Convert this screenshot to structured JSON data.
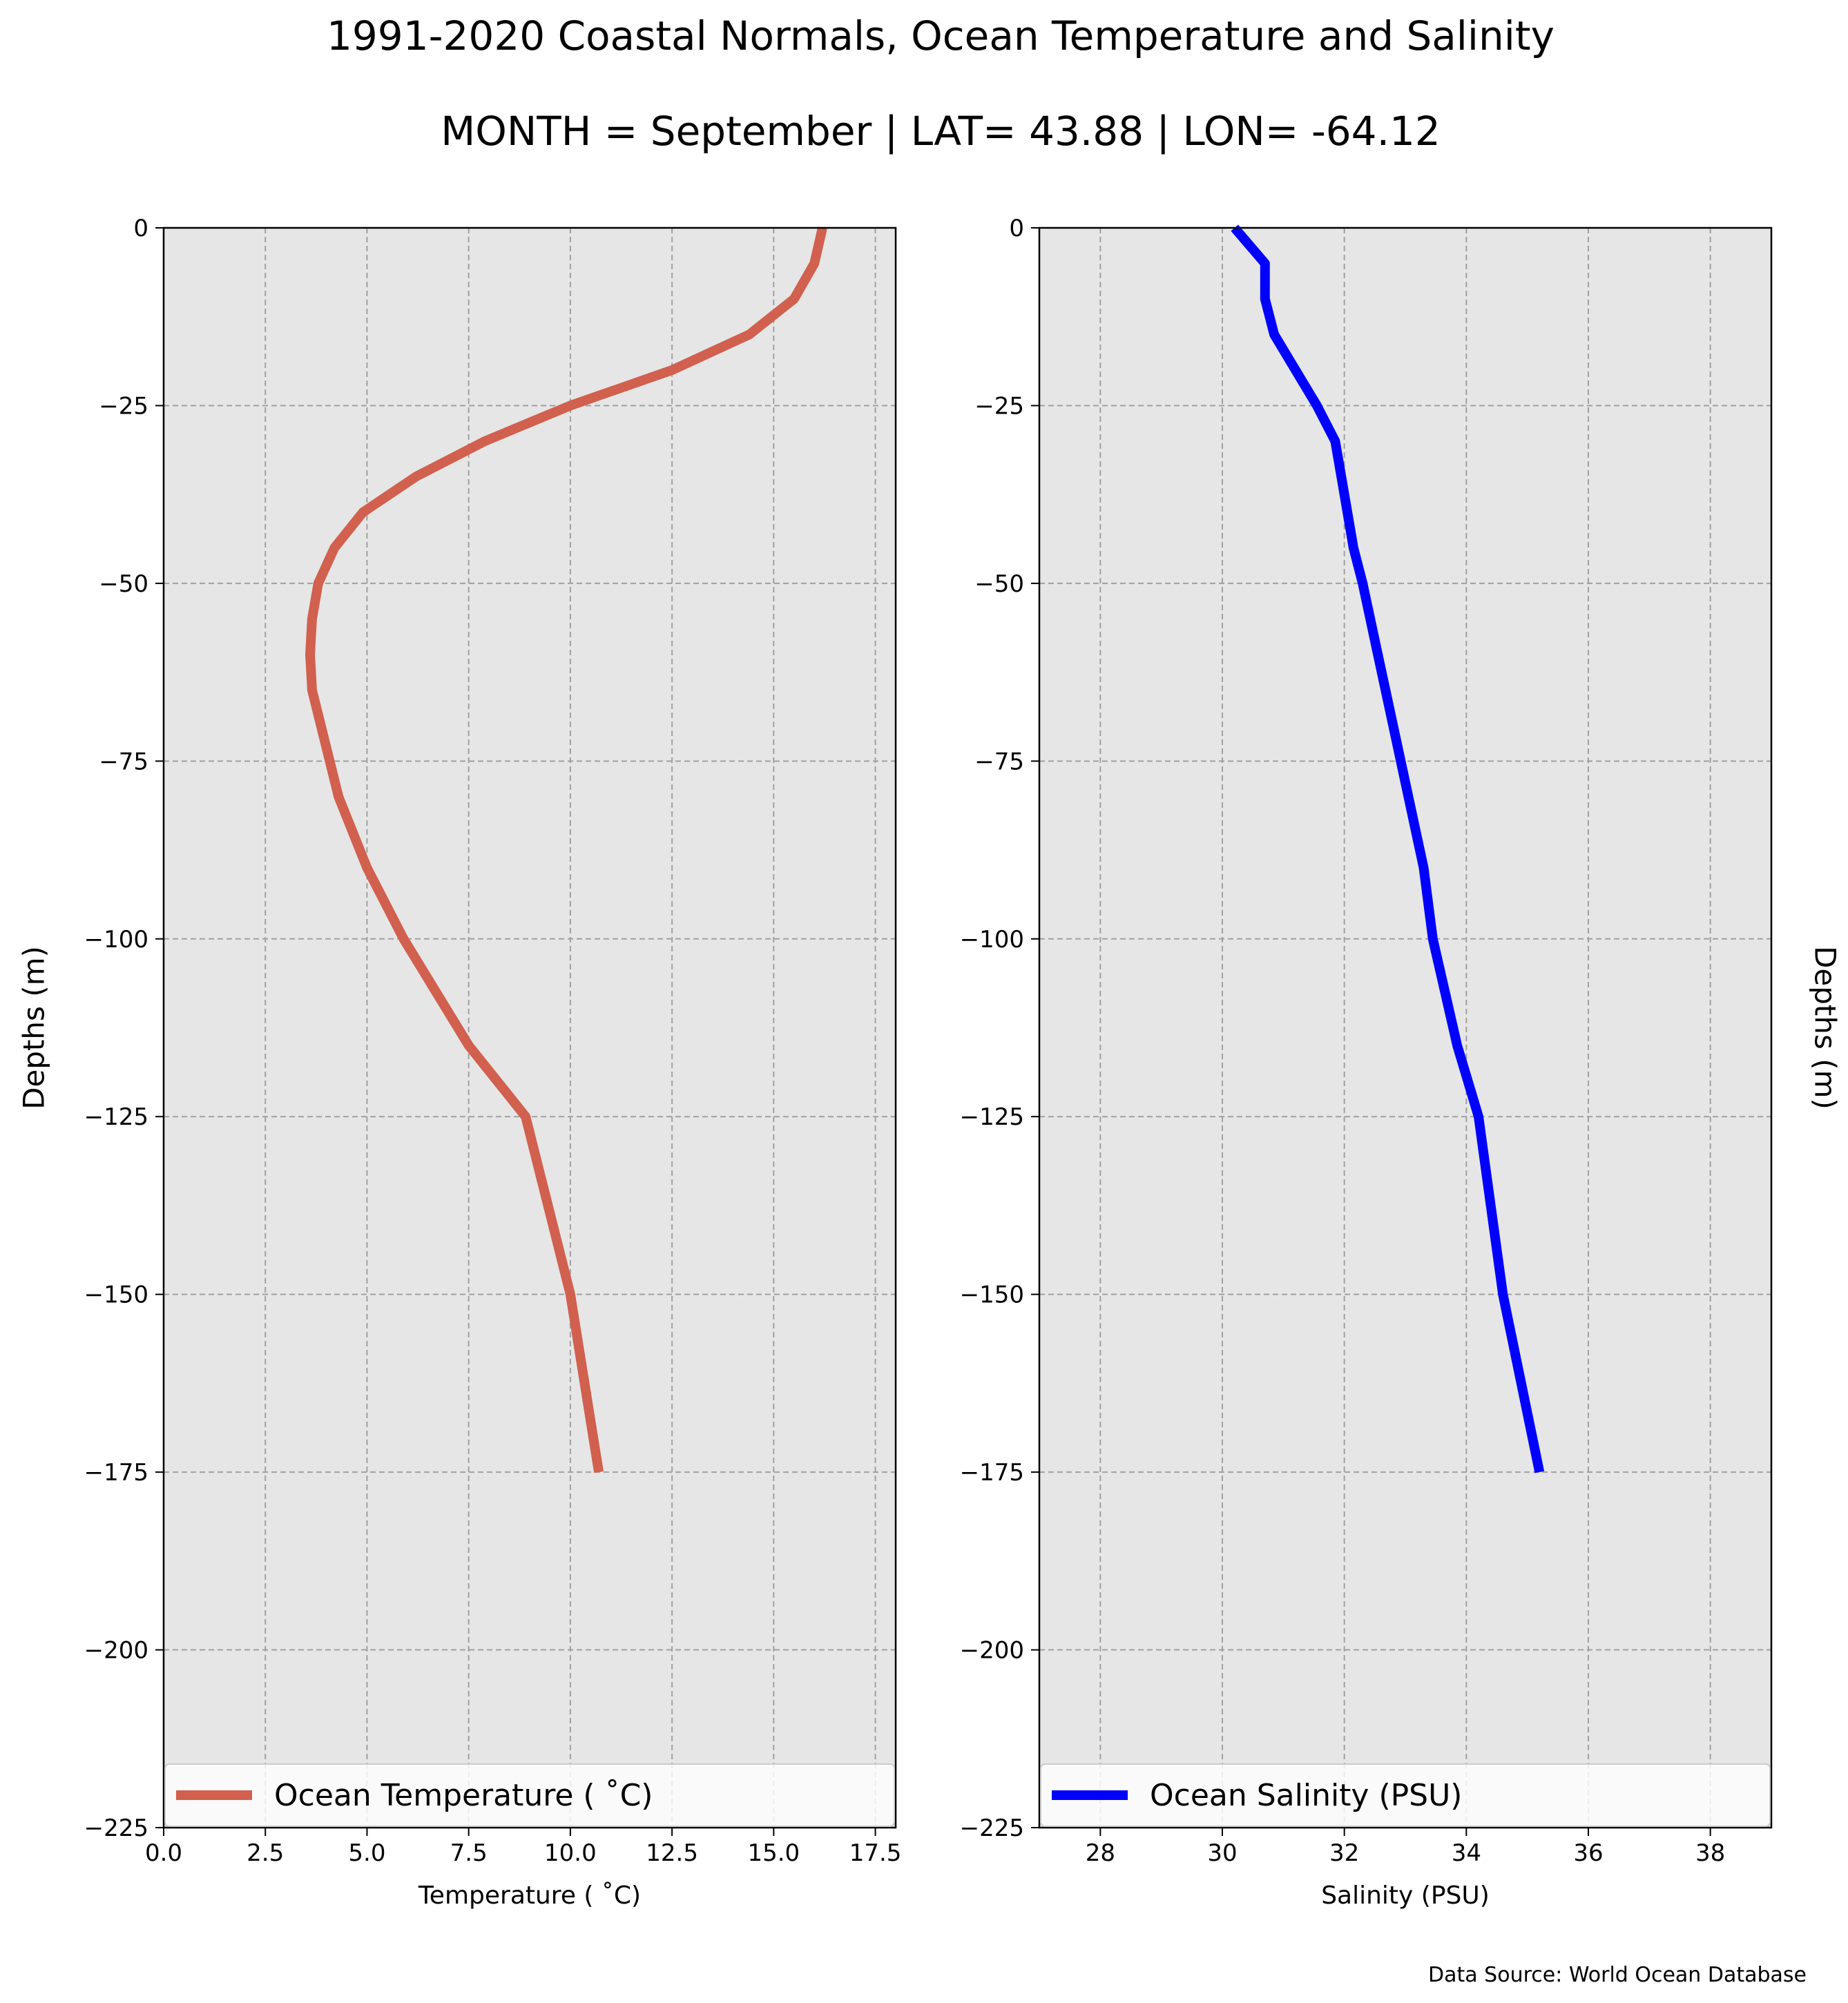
{
  "figure": {
    "title": "1991-2020 Coastal Normals, Ocean Temperature and Salinity",
    "subtitle": "MONTH = September | LAT= 43.88 | LON= -64.12",
    "source_note": "Data Source: World Ocean Database",
    "colors": {
      "plot_bg": "#e6e6e6",
      "grid": "#a0a0a0",
      "axis": "#000000"
    }
  },
  "chart_data": [
    {
      "type": "line",
      "xlabel": "Temperature ($^\\circ$C)",
      "xlabel_display": "Temperature ( ˚C)",
      "ylabel": "Depths (m)",
      "xlim": [
        0,
        18
      ],
      "ylim": [
        -225,
        0
      ],
      "xticks": [
        0.0,
        2.5,
        5.0,
        7.5,
        10.0,
        12.5,
        15.0,
        17.5
      ],
      "xtick_labels": [
        "0.0",
        "2.5",
        "5.0",
        "7.5",
        "10.0",
        "12.5",
        "15.0",
        "17.5"
      ],
      "yticks": [
        0,
        -25,
        -50,
        -75,
        -100,
        -125,
        -150,
        -175,
        -200,
        -225
      ],
      "ytick_labels": [
        "0",
        "−25",
        "−50",
        "−75",
        "−100",
        "−125",
        "−150",
        "−175",
        "−200",
        "−225"
      ],
      "grid": true,
      "legend_position": "lower-center",
      "series": [
        {
          "name": "Ocean Temperature ( ˚C)",
          "color": "#d1604f",
          "x": [
            16.2,
            16.0,
            15.5,
            14.4,
            12.5,
            10.0,
            7.9,
            6.2,
            4.9,
            4.2,
            3.8,
            3.65,
            3.6,
            3.65,
            4.3,
            5.0,
            5.9,
            7.5,
            8.9,
            10.0,
            10.7
          ],
          "y": [
            0,
            -5,
            -10,
            -15,
            -20,
            -25,
            -30,
            -35,
            -40,
            -45,
            -50,
            -55,
            -60,
            -65,
            -80,
            -90,
            -100,
            -115,
            -125,
            -150,
            -175
          ]
        }
      ]
    },
    {
      "type": "line",
      "xlabel": "Salinity (PSU)",
      "ylabel": "Depths (m)",
      "xlim": [
        27,
        39
      ],
      "ylim": [
        -225,
        0
      ],
      "xticks": [
        28,
        30,
        32,
        34,
        36,
        38
      ],
      "xtick_labels": [
        "28",
        "30",
        "32",
        "34",
        "36",
        "38"
      ],
      "yticks": [
        0,
        -25,
        -50,
        -75,
        -100,
        -125,
        -150,
        -175,
        -200,
        -225
      ],
      "ytick_labels": [
        "0",
        "−25",
        "−50",
        "−75",
        "−100",
        "−125",
        "−150",
        "−175",
        "−200",
        "−225"
      ],
      "grid": true,
      "legend_position": "lower-center",
      "series": [
        {
          "name": "Ocean Salinity (PSU)",
          "color": "#0000ff",
          "x": [
            30.2,
            30.7,
            30.7,
            30.85,
            31.2,
            31.55,
            31.85,
            31.95,
            32.05,
            32.15,
            32.3,
            32.55,
            32.8,
            33.05,
            33.3,
            33.45,
            33.85,
            34.2,
            34.6,
            35.2
          ],
          "y": [
            0,
            -5,
            -10,
            -15,
            -20,
            -25,
            -30,
            -35,
            -40,
            -45,
            -50,
            -60,
            -70,
            -80,
            -90,
            -100,
            -115,
            -125,
            -150,
            -175
          ]
        }
      ]
    }
  ]
}
